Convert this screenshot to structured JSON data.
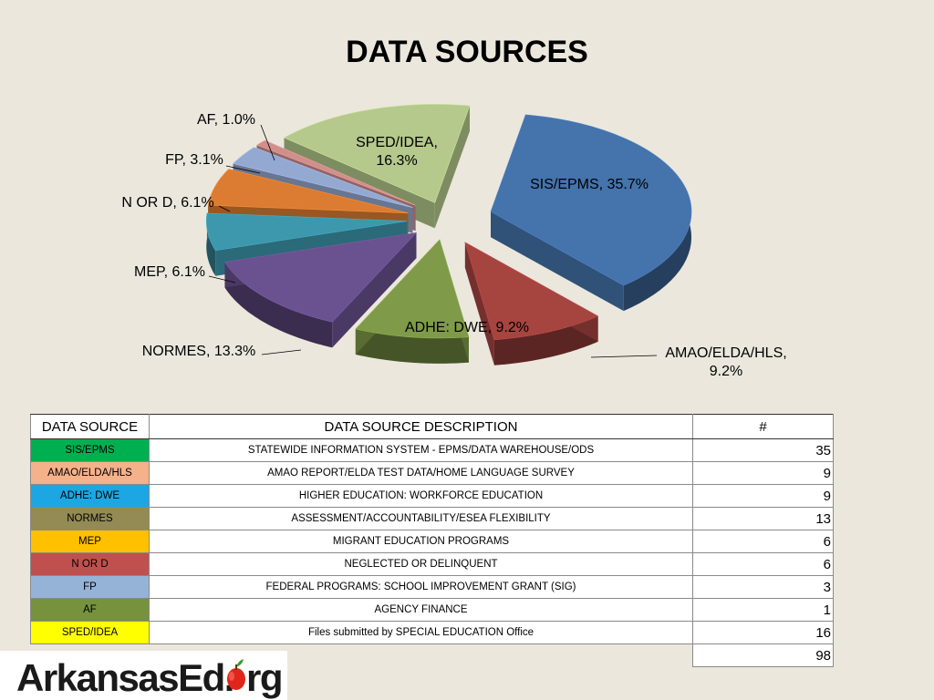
{
  "page": {
    "title": "DATA SOURCES"
  },
  "chart_data": {
    "type": "pie",
    "title": "DATA SOURCES",
    "slices": [
      {
        "name": "SIS/EPMS",
        "value": 35.7,
        "label": "SIS/EPMS, 35.7%",
        "color": "#4573ab"
      },
      {
        "name": "AMAO/ELDA/HLS",
        "value": 9.2,
        "label": "AMAO/ELDA/HLS, 9.2%",
        "color": "#a64440"
      },
      {
        "name": "ADHE: DWE",
        "value": 9.2,
        "label": "ADHE: DWE, 9.2%",
        "color": "#7f9a48"
      },
      {
        "name": "NORMES",
        "value": 13.3,
        "label": "NORMES, 13.3%",
        "color": "#6a5290"
      },
      {
        "name": "MEP",
        "value": 6.1,
        "label": "MEP, 6.1%",
        "color": "#3d97ad"
      },
      {
        "name": "N OR D",
        "value": 6.1,
        "label": "N OR D, 6.1%",
        "color": "#db7c32"
      },
      {
        "name": "FP",
        "value": 3.1,
        "label": "FP, 3.1%",
        "color": "#94a9d1"
      },
      {
        "name": "AF",
        "value": 1.0,
        "label": "AF, 1.0%",
        "color": "#d08f8c"
      },
      {
        "name": "SPED/IDEA",
        "value": 16.3,
        "label": "SPED/IDEA, 16.3%",
        "color": "#b4c98b"
      }
    ]
  },
  "table": {
    "headers": [
      "DATA SOURCE",
      "DATA SOURCE DESCRIPTION",
      "#"
    ],
    "rows": [
      {
        "source": "SIS/EPMS",
        "description": "STATEWIDE INFORMATION SYSTEM - EPMS/DATA WAREHOUSE/ODS",
        "count": "35",
        "color": "#00b050"
      },
      {
        "source": "AMAO/ELDA/HLS",
        "description": "AMAO REPORT/ELDA TEST DATA/HOME LANGUAGE SURVEY",
        "count": "9",
        "color": "#f5b18a"
      },
      {
        "source": "ADHE: DWE",
        "description": "HIGHER EDUCATION: WORKFORCE EDUCATION",
        "count": "9",
        "color": "#1ca6e3"
      },
      {
        "source": "NORMES",
        "description": "ASSESSMENT/ACCOUNTABILITY/ESEA FLEXIBILITY",
        "count": "13",
        "color": "#948a54"
      },
      {
        "source": "MEP",
        "description": "MIGRANT EDUCATION PROGRAMS",
        "count": "6",
        "color": "#ffc000"
      },
      {
        "source": "N OR D",
        "description": "NEGLECTED OR DELINQUENT",
        "count": "6",
        "color": "#c0504d"
      },
      {
        "source": "FP",
        "description": "FEDERAL PROGRAMS: SCHOOL IMPROVEMENT GRANT (SIG)",
        "count": "3",
        "color": "#95b3d7"
      },
      {
        "source": "AF",
        "description": "AGENCY FINANCE",
        "count": "1",
        "color": "#76923c"
      },
      {
        "source": "SPED/IDEA",
        "description": "Files submitted by SPECIAL EDUCATION Office",
        "count": "16",
        "color": "#ffff00"
      }
    ],
    "total": "98"
  },
  "logo": {
    "text_main": "ArkansasEd.",
    "text_o": "o",
    "text_end": "rg",
    "brand_color": "#1a1a1a",
    "apple_color": "#e0261b"
  }
}
